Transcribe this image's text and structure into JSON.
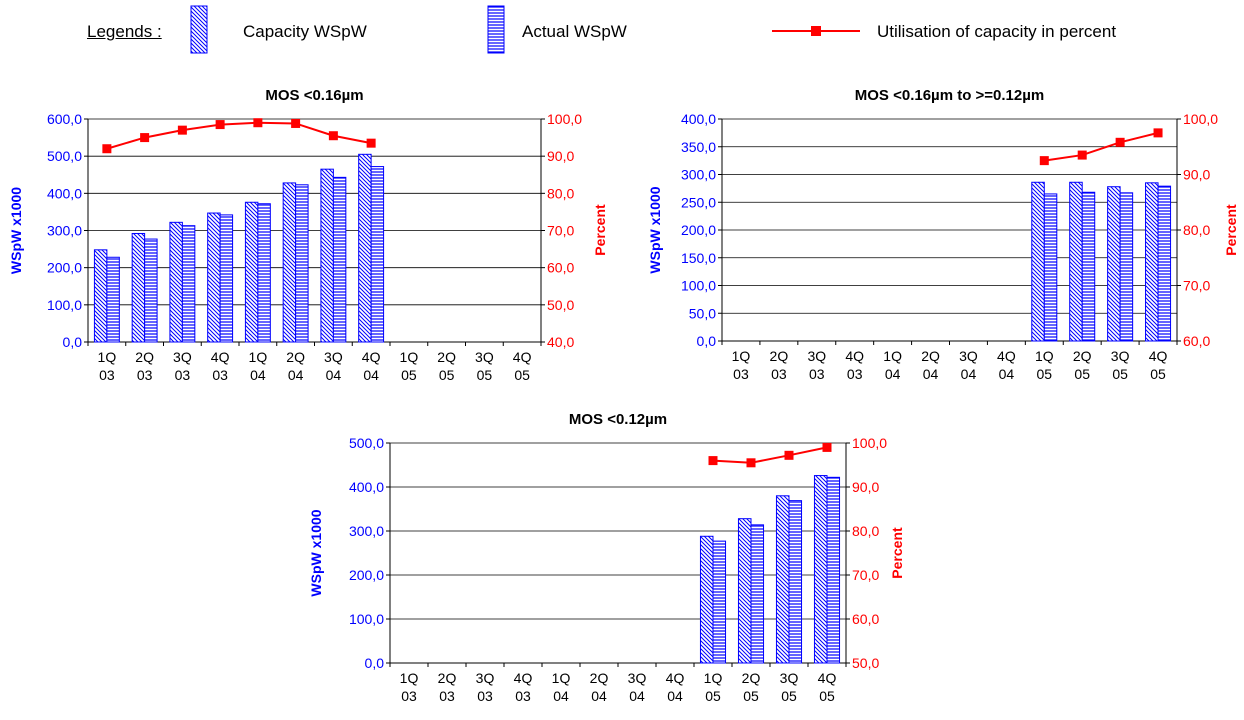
{
  "legend": {
    "title": "Legends :",
    "capacity_label": "Capacity  WSpW",
    "actual_label": "Actual  WSpW",
    "utilisation_label": "Utilisation of capacity in percent"
  },
  "colors": {
    "bar": "#0000ff",
    "line": "#ff0000",
    "marker": "#ff0000",
    "grid": "#000000"
  },
  "chart_data": [
    {
      "type": "bar",
      "title": "MOS <0.16µm",
      "ylabel": "WSpW x1000",
      "y2label": "Percent",
      "categories": [
        "1Q 03",
        "2Q 03",
        "3Q 03",
        "4Q 03",
        "1Q 04",
        "2Q 04",
        "3Q 04",
        "4Q 04",
        "1Q 05",
        "2Q 05",
        "3Q 05",
        "4Q 05"
      ],
      "ylim": [
        0,
        600
      ],
      "y_ticks": [
        "0,0",
        "100,0",
        "200,0",
        "300,0",
        "400,0",
        "500,0",
        "600,0"
      ],
      "y2lim": [
        40,
        100
      ],
      "y2_ticks": [
        "40,0",
        "50,0",
        "60,0",
        "70,0",
        "80,0",
        "90,0",
        "100,0"
      ],
      "grid": true,
      "series": [
        {
          "name": "Capacity  WSpW",
          "kind": "bar",
          "values": [
            248,
            292,
            322,
            347,
            376,
            428,
            465,
            505,
            null,
            null,
            null,
            null
          ]
        },
        {
          "name": "Actual  WSpW",
          "kind": "bar",
          "values": [
            228,
            277,
            313,
            342,
            372,
            423,
            443,
            472,
            null,
            null,
            null,
            null
          ]
        },
        {
          "name": "Utilisation of capacity in percent",
          "kind": "line",
          "axis": "right",
          "values": [
            92.0,
            95.0,
            97.0,
            98.5,
            99.0,
            98.8,
            95.5,
            93.5,
            null,
            null,
            null,
            null
          ]
        }
      ]
    },
    {
      "type": "bar",
      "title": "MOS <0.16µm to >=0.12µm",
      "ylabel": "WSpW x1000",
      "y2label": "Percent",
      "categories": [
        "1Q 03",
        "2Q 03",
        "3Q 03",
        "4Q 03",
        "1Q 04",
        "2Q 04",
        "3Q 04",
        "4Q 04",
        "1Q 05",
        "2Q 05",
        "3Q 05",
        "4Q 05"
      ],
      "ylim": [
        0,
        400
      ],
      "y_ticks": [
        "0,0",
        "50,0",
        "100,0",
        "150,0",
        "200,0",
        "250,0",
        "300,0",
        "350,0",
        "400,0"
      ],
      "y2lim": [
        60,
        100
      ],
      "y2_ticks": [
        "60,0",
        "70,0",
        "80,0",
        "90,0",
        "100,0"
      ],
      "grid": true,
      "series": [
        {
          "name": "Capacity  WSpW",
          "kind": "bar",
          "values": [
            null,
            null,
            null,
            null,
            null,
            null,
            null,
            null,
            286,
            286,
            278,
            285
          ]
        },
        {
          "name": "Actual  WSpW",
          "kind": "bar",
          "values": [
            null,
            null,
            null,
            null,
            null,
            null,
            null,
            null,
            265,
            268,
            267,
            279
          ]
        },
        {
          "name": "Utilisation of capacity in percent",
          "kind": "line",
          "axis": "right",
          "values": [
            null,
            null,
            null,
            null,
            null,
            null,
            null,
            null,
            92.5,
            93.5,
            95.8,
            97.5
          ]
        }
      ]
    },
    {
      "type": "bar",
      "title": "MOS <0.12µm",
      "ylabel": "WSpW x1000",
      "y2label": "Percent",
      "categories": [
        "1Q 03",
        "2Q 03",
        "3Q 03",
        "4Q 03",
        "1Q 04",
        "2Q 04",
        "3Q 04",
        "4Q 04",
        "1Q 05",
        "2Q 05",
        "3Q 05",
        "4Q 05"
      ],
      "ylim": [
        0,
        500
      ],
      "y_ticks": [
        "0,0",
        "100,0",
        "200,0",
        "300,0",
        "400,0",
        "500,0"
      ],
      "y2lim": [
        50,
        100
      ],
      "y2_ticks": [
        "50,0",
        "60,0",
        "70,0",
        "80,0",
        "90,0",
        "100,0"
      ],
      "grid": true,
      "series": [
        {
          "name": "Capacity  WSpW",
          "kind": "bar",
          "values": [
            null,
            null,
            null,
            null,
            null,
            null,
            null,
            null,
            288,
            328,
            380,
            426
          ]
        },
        {
          "name": "Actual  WSpW",
          "kind": "bar",
          "values": [
            null,
            null,
            null,
            null,
            null,
            null,
            null,
            null,
            277,
            314,
            369,
            422
          ]
        },
        {
          "name": "Utilisation of capacity in percent",
          "kind": "line",
          "axis": "right",
          "values": [
            null,
            null,
            null,
            null,
            null,
            null,
            null,
            null,
            96.0,
            95.5,
            97.2,
            99.0
          ]
        }
      ]
    }
  ]
}
